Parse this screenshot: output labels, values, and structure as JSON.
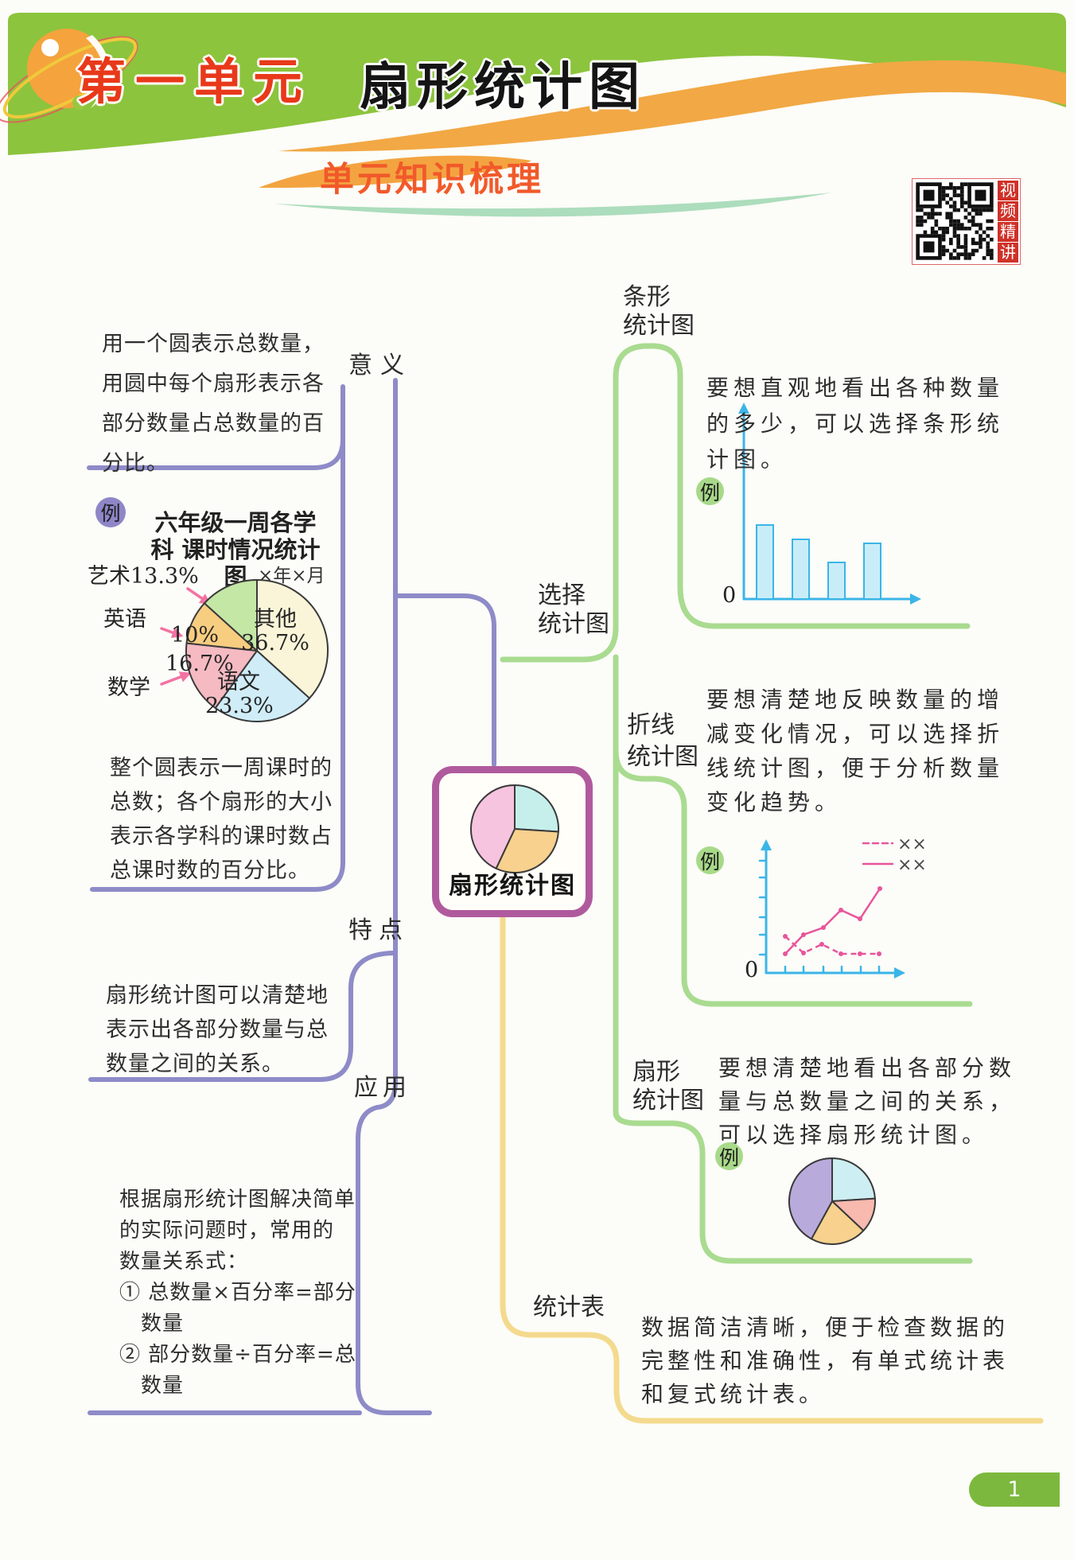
{
  "header": {
    "unit": "第一单元",
    "title": "扇形统计图",
    "section_title": "单元知识梳理",
    "qr_caption": "视频精讲"
  },
  "page": {
    "number": "1"
  },
  "mindmap": {
    "center": {
      "title": "扇形统计图",
      "pie": {
        "type": "pie",
        "slices": [
          {
            "pct": 26,
            "color": "#c6efec"
          },
          {
            "pct": 31,
            "color": "#f7d18d"
          },
          {
            "pct": 43,
            "color": "#f6c4de"
          }
        ]
      }
    },
    "left": {
      "meaning": {
        "label": "意义",
        "text": "用一个圆表示总数量，\n用圆中每个扇形表示各\n部分数量占总数量的百\n分比。",
        "example": {
          "badge": "例",
          "title": "六年级一周各学科\n课时情况统计图",
          "date": "×年×月",
          "pie": {
            "type": "pie",
            "slices": [
              {
                "name": "其他",
                "pct": 36.7,
                "color": "#faf5d8"
              },
              {
                "name": "语文",
                "pct": 23.3,
                "color": "#cfecf7"
              },
              {
                "name": "数学",
                "pct": 16.7,
                "color": "#f5bac2"
              },
              {
                "name": "英语",
                "pct": 10,
                "color": "#f7cd80"
              },
              {
                "name": "艺术",
                "pct": 13.3,
                "color": "#c4e7a6"
              }
            ]
          },
          "inner_labels": [
            "其他\n36.7%",
            "语文\n23.3%",
            "16.7%",
            "10%"
          ],
          "outer_labels": [
            "艺术13.3%",
            "英语",
            "数学"
          ],
          "note": "整个圆表示一周课时的\n总数；各个扇形的大小\n表示各学科的课时数占\n总课时数的百分比。"
        }
      },
      "feature": {
        "label": "特点",
        "text": "扇形统计图可以清楚地\n表示出各部分数量与总\n数量之间的关系。"
      },
      "application": {
        "label": "应用",
        "text": "根据扇形统计图解决简单\n的实际问题时，常用的\n数量关系式：\n① 总数量×百分率=部分\n　数量\n② 部分数量÷百分率=总\n　数量"
      }
    },
    "right": {
      "choose": {
        "label": "选择\n统计图"
      },
      "bar": {
        "label": "条形\n统计图",
        "badge": "例",
        "text": "要想直观地看出各种数量\n的多少，可以选择条形统\n计图。",
        "chart": {
          "type": "bar",
          "values": [
            93,
            75,
            46,
            70
          ],
          "origin_label": "0"
        }
      },
      "line": {
        "label": "折线\n统计图",
        "badge": "例",
        "text": "要想清楚地反映数量的增\n减变化情况，可以选择折\n线统计图，便于分析数量\n变化趋势。",
        "chart": {
          "type": "line",
          "origin_label": "0",
          "legend": [
            "××",
            "××"
          ],
          "solid": [
            [
              24,
              24
            ],
            [
              47,
              48
            ],
            [
              72,
              57
            ],
            [
              94,
              79
            ],
            [
              118,
              68
            ],
            [
              143,
              106
            ]
          ],
          "dashed": [
            [
              24,
              46
            ],
            [
              47,
              25
            ],
            [
              70,
              36
            ],
            [
              94,
              24
            ],
            [
              118,
              24
            ],
            [
              142,
              24
            ]
          ]
        }
      },
      "pie": {
        "label": "扇形\n统计图",
        "badge": "例",
        "text": "要想清楚地看出各部分数\n量与总数量之间的关系，\n可以选择扇形统计图。",
        "chart": {
          "type": "pie",
          "slices": [
            {
              "pct": 24,
              "color": "#cdeef2"
            },
            {
              "pct": 13,
              "color": "#f8b9ae"
            },
            {
              "pct": 21,
              "color": "#f7d18d"
            },
            {
              "pct": 42,
              "color": "#b9aadc"
            }
          ]
        }
      },
      "table": {
        "label": "统计表",
        "text": "数据简洁清晰，便于检查数据的\n完整性和准确性，有单式统计表\n和复式统计表。"
      }
    }
  }
}
